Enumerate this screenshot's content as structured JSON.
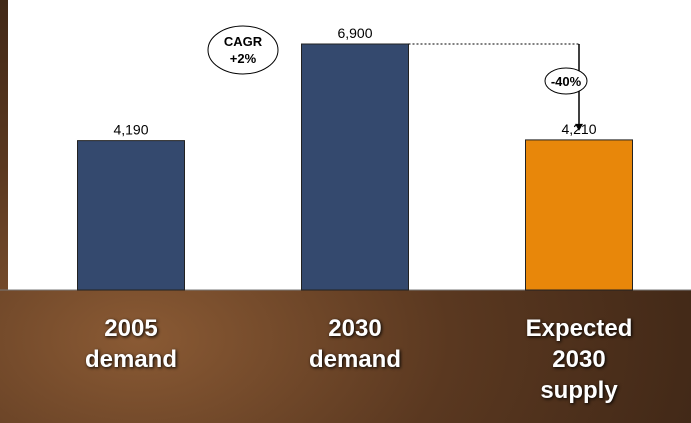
{
  "chart_data": {
    "type": "bar",
    "categories": [
      "2005 demand",
      "2030 demand",
      "Expected 2030 supply"
    ],
    "values": [
      4190,
      6900,
      4210
    ],
    "value_labels": [
      "4,190",
      "6,900",
      "4,210"
    ],
    "colors": [
      "#34496e",
      "#34496e",
      "#e8870a"
    ],
    "annotations": [
      "CAGR +2%",
      "-40%"
    ]
  }
}
